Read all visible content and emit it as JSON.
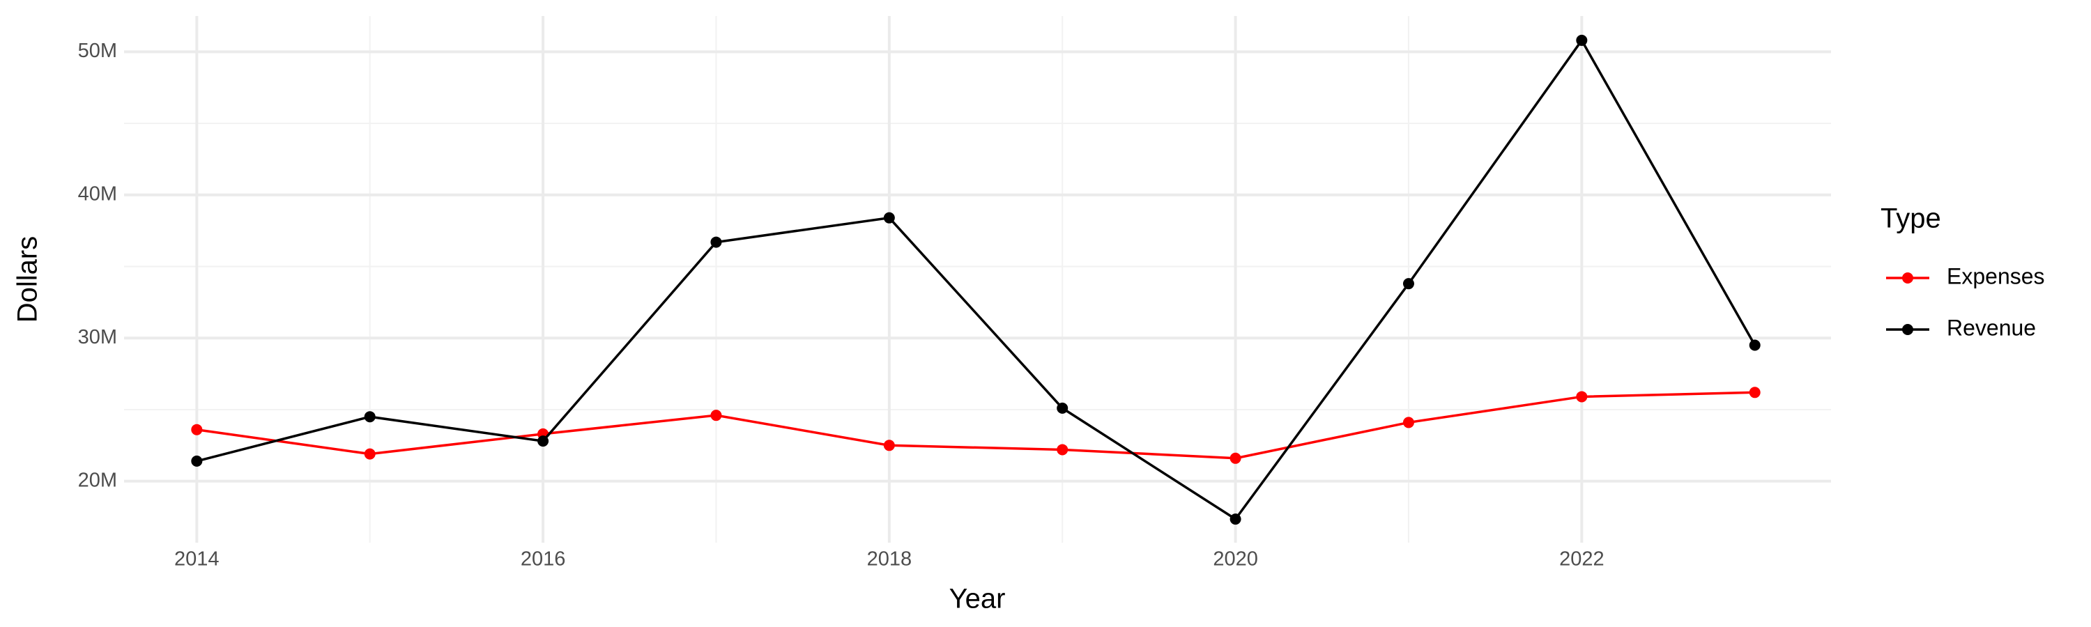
{
  "chart_data": {
    "type": "line",
    "x_label": "Year",
    "y_label": "Dollars",
    "legend_title": "Type",
    "legend_position": "right",
    "x": [
      2014,
      2015,
      2016,
      2017,
      2018,
      2019,
      2020,
      2021,
      2022,
      2023
    ],
    "series": [
      {
        "name": "Expenses",
        "color": "#ff0000",
        "values": [
          23600000,
          21900000,
          23300000,
          24600000,
          22500000,
          22200000,
          21600000,
          24100000,
          25900000,
          26200000
        ]
      },
      {
        "name": "Revenue",
        "color": "#000000",
        "values": [
          21400000,
          24500000,
          22800000,
          36700000,
          38400000,
          25100000,
          17350000,
          33800000,
          50800000,
          29500000
        ]
      }
    ],
    "xlim": [
      2013.58,
      2023.44
    ],
    "xticks": [
      2014,
      2016,
      2018,
      2020,
      2022
    ],
    "ylim": [
      15700000,
      52500000
    ],
    "yticks": [
      {
        "value": 20000000,
        "label": "20M"
      },
      {
        "value": 30000000,
        "label": "30M"
      },
      {
        "value": 40000000,
        "label": "40M"
      },
      {
        "value": 50000000,
        "label": "50M"
      }
    ],
    "grid": true
  }
}
